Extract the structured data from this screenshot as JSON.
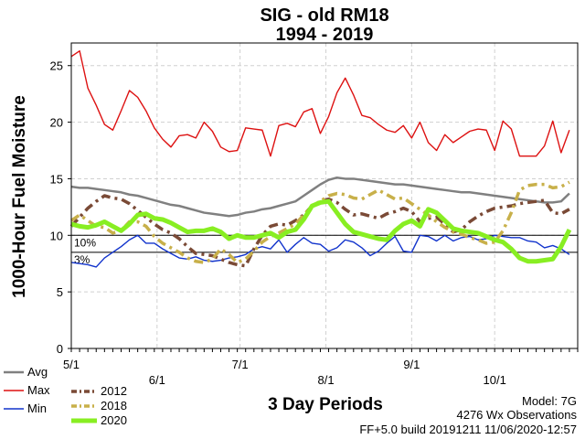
{
  "chart_data": {
    "type": "line",
    "title": "SIG - old RM18",
    "subtitle": "1994 - 2019",
    "ylabel": "1000-Hour Fuel Moisture",
    "xlabel": "3 Day Periods",
    "ylim": [
      0,
      27
    ],
    "yticks": [
      0,
      5,
      10,
      15,
      20,
      25
    ],
    "xlim": [
      0,
      61
    ],
    "xticks": [
      {
        "label": "5/1",
        "pos": 0
      },
      {
        "label": "6/1",
        "pos": 10.33
      },
      {
        "label": "7/1",
        "pos": 20.33
      },
      {
        "label": "8/1",
        "pos": 30.67
      },
      {
        "label": "9/1",
        "pos": 41
      },
      {
        "label": "10/1",
        "pos": 51
      }
    ],
    "reference_lines": [
      {
        "label": "10%",
        "value": 10
      },
      {
        "label": "3%",
        "value": 8.5
      }
    ],
    "legend": [
      "Avg",
      "Max",
      "Min",
      "2012",
      "2018",
      "2020"
    ],
    "info": {
      "model": "Model: 7G",
      "observations": "4276 Wx Observations",
      "build": "FF+5.0 build 20191211 11/06/2020-12:57"
    },
    "series": [
      {
        "name": "Avg",
        "color": "#808080",
        "style": "solid",
        "values": [
          14.3,
          14.2,
          14.2,
          14.1,
          14.0,
          13.9,
          13.8,
          13.6,
          13.5,
          13.3,
          13.1,
          12.9,
          12.7,
          12.6,
          12.4,
          12.2,
          12.0,
          11.9,
          11.8,
          11.7,
          11.8,
          12.0,
          12.1,
          12.3,
          12.4,
          12.6,
          12.8,
          13.0,
          13.5,
          14.0,
          14.5,
          14.9,
          15.1,
          15.0,
          15.0,
          14.9,
          14.8,
          14.7,
          14.6,
          14.5,
          14.5,
          14.4,
          14.3,
          14.2,
          14.1,
          14.0,
          13.9,
          13.8,
          13.8,
          13.7,
          13.6,
          13.5,
          13.4,
          13.3,
          13.2,
          13.1,
          13.0,
          12.9,
          12.9,
          13.0,
          13.7
        ]
      },
      {
        "name": "Max",
        "color": "#dd1111",
        "style": "solid",
        "values": [
          25.8,
          26.3,
          23.0,
          21.5,
          19.8,
          19.3,
          21.0,
          22.8,
          22.2,
          21.0,
          19.5,
          18.5,
          17.8,
          18.8,
          18.9,
          18.6,
          20.0,
          19.2,
          17.8,
          17.4,
          17.5,
          19.5,
          19.4,
          19.3,
          17.0,
          19.7,
          19.9,
          19.6,
          20.9,
          21.2,
          19.0,
          20.5,
          22.6,
          23.9,
          22.4,
          20.6,
          20.4,
          19.8,
          19.3,
          19.1,
          19.7,
          18.6,
          20.0,
          18.2,
          17.5,
          18.9,
          18.2,
          18.7,
          19.2,
          19.4,
          19.3,
          17.5,
          20.1,
          19.4,
          17.0,
          17.0,
          17.0,
          17.9,
          20.1,
          17.3,
          19.3
        ]
      },
      {
        "name": "Min",
        "color": "#1133cc",
        "style": "solid",
        "values": [
          7.6,
          7.5,
          7.4,
          7.2,
          8.0,
          8.5,
          9.0,
          9.6,
          10.0,
          9.3,
          9.3,
          8.8,
          8.4,
          8.0,
          7.9,
          8.1,
          7.8,
          7.7,
          7.8,
          8.0,
          8.1,
          8.3,
          8.8,
          9.0,
          8.8,
          9.6,
          8.5,
          9.2,
          9.8,
          9.3,
          9.2,
          8.6,
          8.9,
          9.6,
          9.4,
          8.9,
          8.2,
          8.6,
          9.3,
          9.9,
          8.6,
          8.5,
          10.0,
          9.9,
          9.5,
          10.0,
          9.5,
          9.8,
          9.9,
          9.6,
          9.7,
          10.0,
          9.9,
          9.8,
          9.8,
          9.5,
          9.4,
          8.9,
          9.1,
          8.8,
          8.3
        ]
      },
      {
        "name": "2012",
        "color": "#7a4a36",
        "style": "dashdot",
        "values": [
          10.8,
          11.6,
          12.4,
          13.0,
          13.5,
          13.3,
          13.2,
          12.8,
          12.2,
          11.6,
          11.0,
          10.5,
          10.2,
          9.7,
          9.0,
          8.4,
          8.3,
          8.2,
          7.9,
          7.6,
          7.4,
          7.3,
          8.8,
          10.0,
          10.8,
          11.0,
          10.9,
          11.3,
          11.8,
          12.6,
          13.0,
          13.2,
          12.9,
          12.3,
          11.8,
          11.9,
          11.7,
          11.5,
          11.9,
          12.1,
          12.4,
          12.1,
          11.2,
          11.5,
          11.6,
          11.0,
          10.3,
          10.5,
          11.2,
          11.7,
          12.1,
          12.4,
          12.5,
          12.6,
          12.8,
          12.9,
          13.0,
          13.1,
          12.0,
          11.9,
          12.3
        ]
      },
      {
        "name": "2018",
        "color": "#c8b04a",
        "style": "dashdot",
        "values": [
          11.3,
          11.8,
          11.3,
          10.8,
          10.7,
          10.2,
          10.4,
          11.2,
          11.2,
          10.8,
          9.9,
          9.3,
          8.9,
          8.5,
          8.0,
          7.7,
          7.6,
          7.9,
          8.8,
          8.3,
          7.6,
          7.9,
          8.6,
          9.4,
          9.9,
          10.2,
          10.6,
          11.0,
          11.8,
          12.6,
          13.0,
          13.5,
          13.7,
          13.6,
          13.3,
          13.2,
          13.6,
          14.0,
          13.6,
          13.2,
          13.3,
          12.8,
          12.3,
          11.8,
          11.2,
          10.7,
          10.3,
          10.1,
          9.8,
          9.6,
          9.3,
          9.4,
          10.4,
          12.0,
          14.0,
          14.4,
          14.5,
          14.5,
          14.2,
          14.3,
          14.7
        ]
      },
      {
        "name": "2020",
        "color": "#88ee22",
        "style": "solid",
        "values": [
          11.0,
          10.8,
          10.7,
          10.9,
          11.2,
          10.8,
          10.4,
          11.0,
          11.8,
          11.9,
          11.5,
          11.4,
          11.1,
          10.7,
          10.3,
          10.4,
          10.4,
          10.6,
          10.3,
          9.7,
          10.0,
          9.8,
          9.8,
          10.0,
          10.2,
          9.8,
          10.3,
          10.5,
          11.4,
          12.6,
          12.9,
          13.0,
          12.0,
          11.0,
          10.3,
          10.1,
          9.9,
          9.7,
          9.6,
          10.4,
          11.0,
          11.3,
          10.8,
          12.3,
          12.0,
          11.3,
          10.6,
          10.4,
          10.3,
          10.2,
          9.9,
          9.6,
          9.4,
          8.8,
          8.0,
          7.7,
          7.7,
          7.8,
          7.9,
          9.0,
          10.5
        ]
      }
    ]
  }
}
